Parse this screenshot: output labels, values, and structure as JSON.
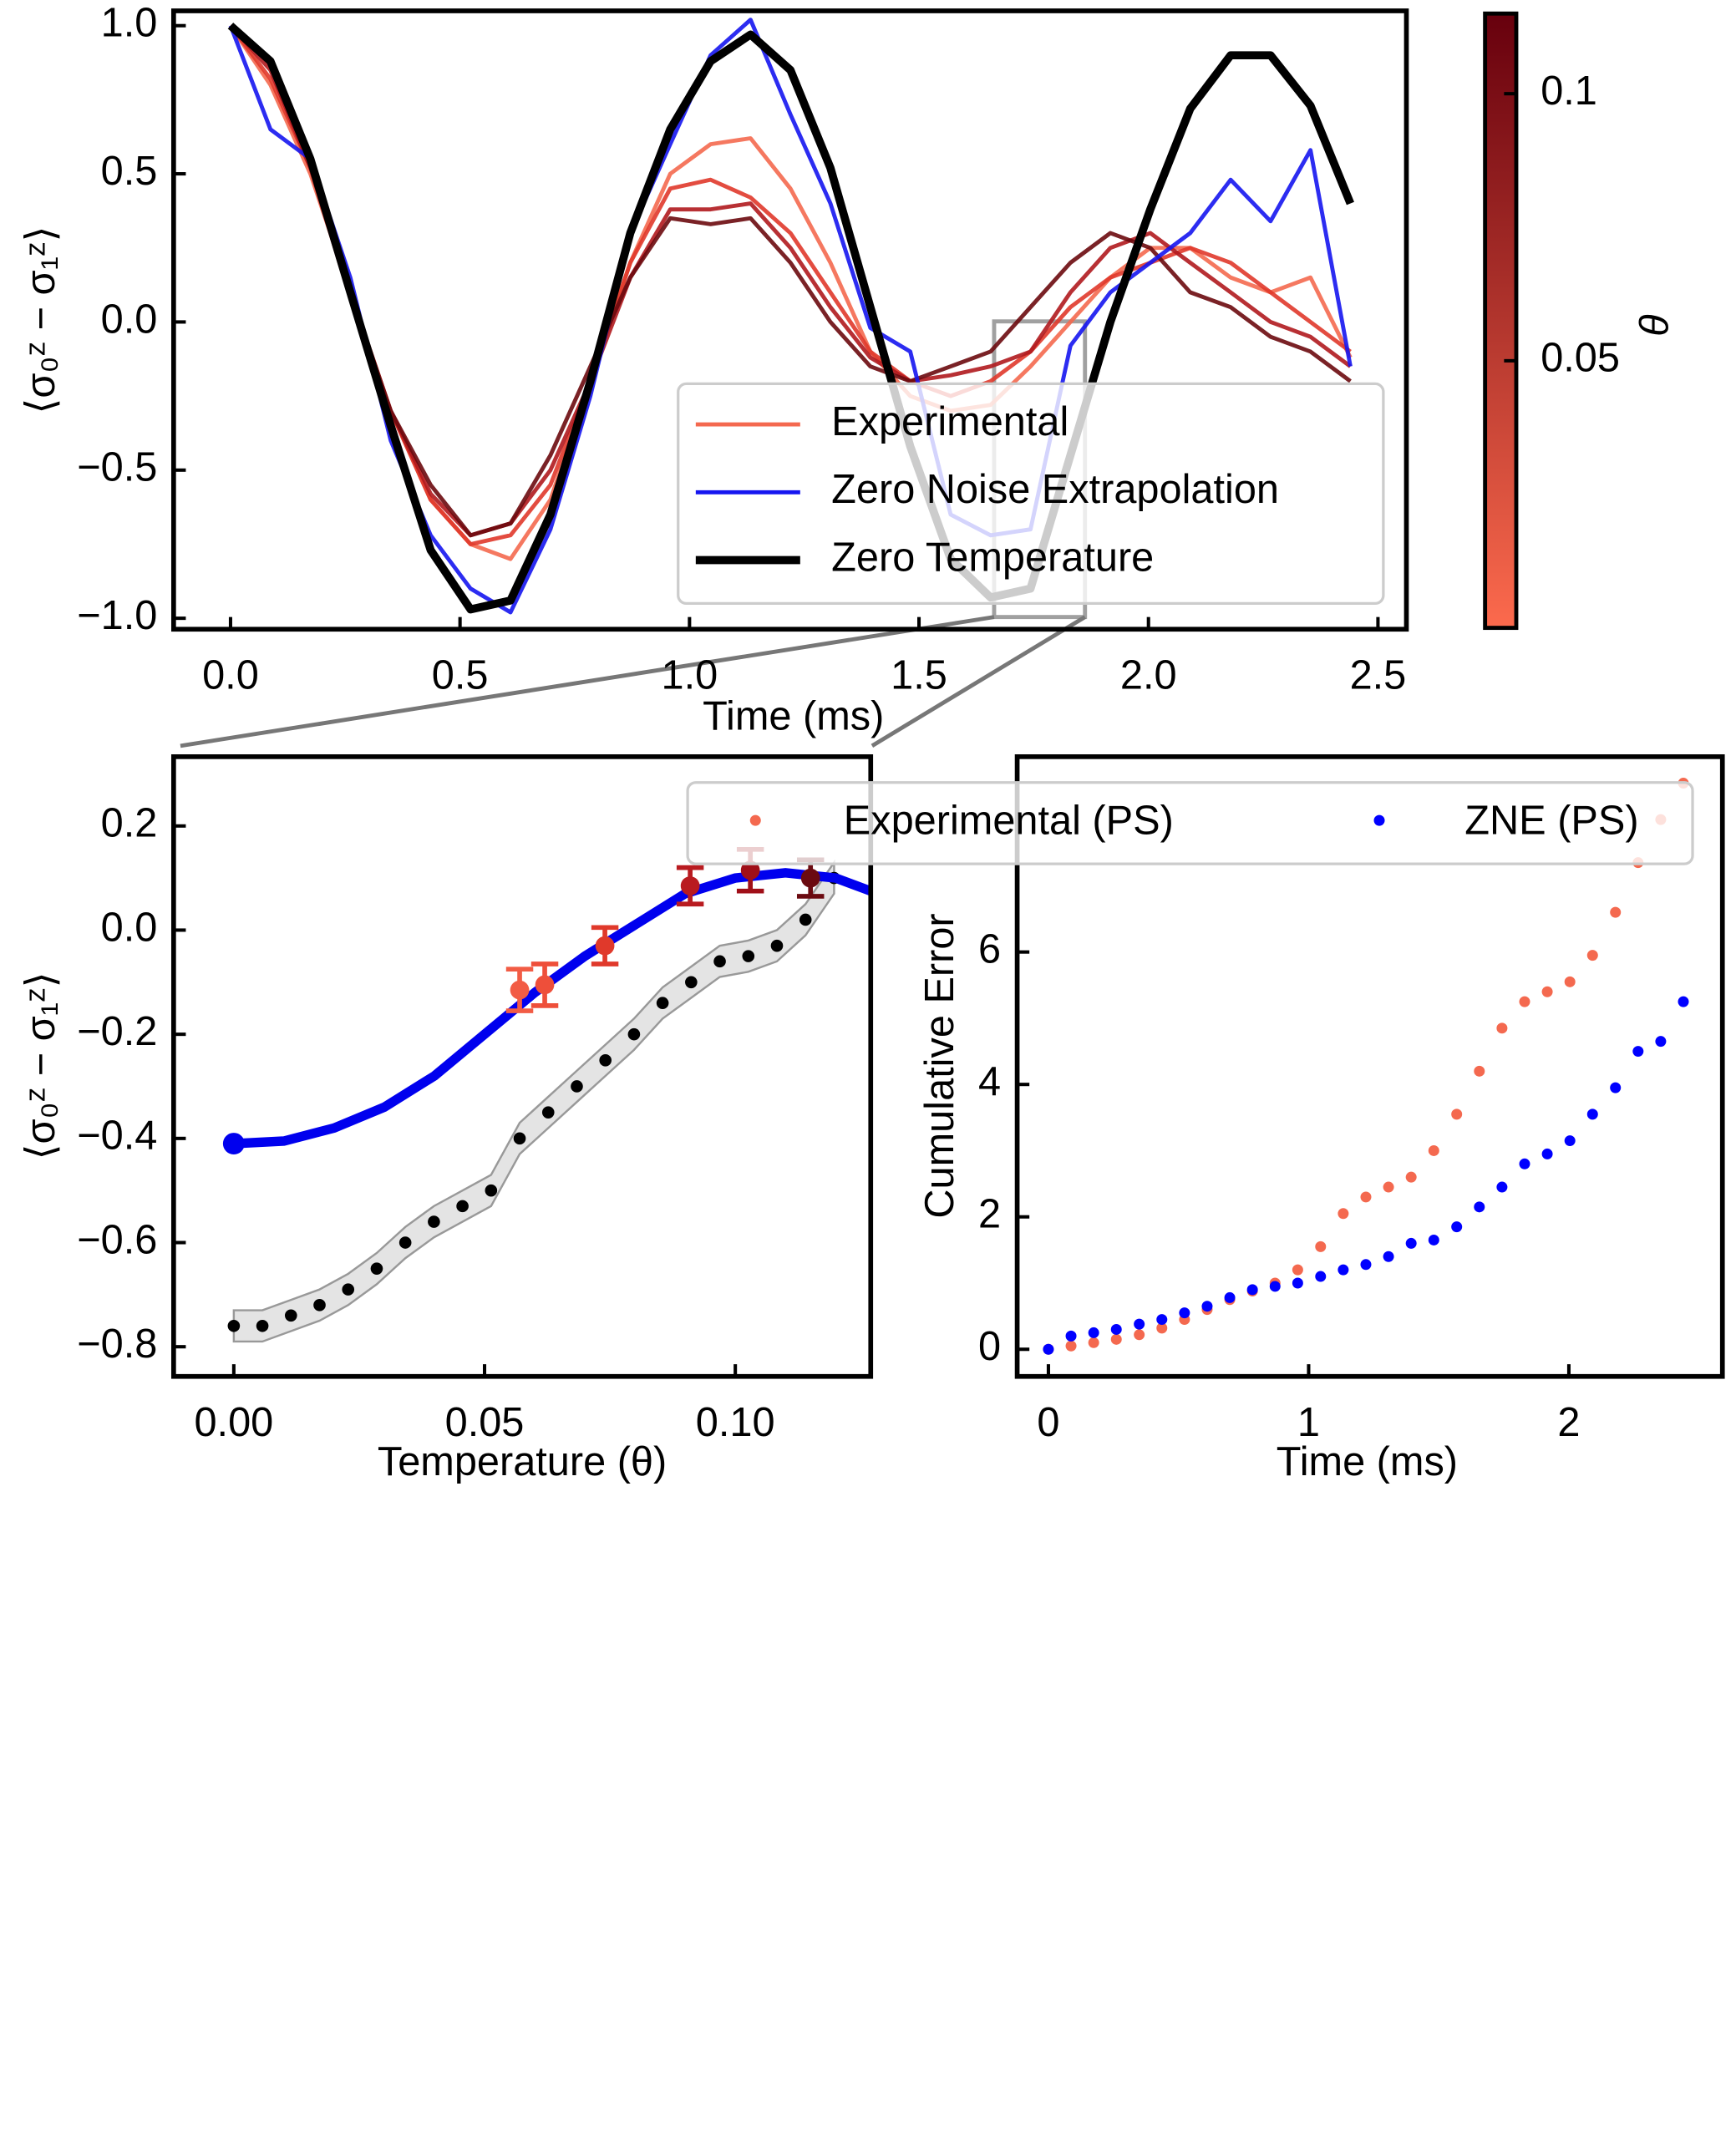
{
  "chart_data": [
    {
      "type": "line",
      "xlabel": "Time (ms)",
      "ylabel": "⟨σ₀ᶻ − σ₁ᶻ⟩",
      "x": [
        0,
        0.087,
        0.174,
        0.261,
        0.349,
        0.436,
        0.523,
        0.61,
        0.697,
        0.784,
        0.871,
        0.958,
        1.046,
        1.133,
        1.22,
        1.307,
        1.394,
        1.481,
        1.569,
        1.656,
        1.743,
        1.83,
        1.917,
        2.004,
        2.091,
        2.179,
        2.266,
        2.353,
        2.44
      ],
      "xlim": [
        -0.124,
        2.562
      ],
      "xticks": [
        {
          "value": 0,
          "label": "0.0"
        },
        0.5,
        {
          "value": 1,
          "label": "1.0"
        },
        1.5,
        {
          "value": 2,
          "label": "2.0"
        },
        2.5
      ],
      "ylim": [
        -1.037,
        1.05
      ],
      "yticks": [
        {
          "value": 1,
          "label": "1.0"
        },
        0.5,
        {
          "value": 0,
          "label": "0.0"
        },
        {
          "value": -0.5,
          "label": "−0.5"
        },
        {
          "value": -1,
          "label": "−1.0"
        }
      ],
      "series": [
        {
          "name": "Experimental",
          "color": "#f4694f",
          "theta": 0.01,
          "values": [
            1.0,
            0.8,
            0.5,
            0.1,
            -0.3,
            -0.6,
            -0.75,
            -0.8,
            -0.6,
            -0.2,
            0.2,
            0.5,
            0.6,
            0.62,
            0.45,
            0.2,
            -0.1,
            -0.25,
            -0.3,
            -0.28,
            -0.15,
            0.0,
            0.15,
            0.25,
            0.25,
            0.15,
            0.1,
            0.15,
            -0.12
          ]
        },
        {
          "color": "#e0392b",
          "theta": 0.06,
          "values": [
            1.0,
            0.82,
            0.52,
            0.1,
            -0.3,
            -0.6,
            -0.75,
            -0.72,
            -0.55,
            -0.2,
            0.2,
            0.45,
            0.48,
            0.42,
            0.3,
            0.1,
            -0.1,
            -0.2,
            -0.25,
            -0.2,
            -0.1,
            0.05,
            0.15,
            0.2,
            0.25,
            0.2,
            0.1,
            0.0,
            -0.1
          ]
        },
        {
          "color": "#b01a1e",
          "theta": 0.09,
          "values": [
            1.0,
            0.85,
            0.52,
            0.08,
            -0.3,
            -0.58,
            -0.72,
            -0.68,
            -0.5,
            -0.2,
            0.15,
            0.38,
            0.38,
            0.4,
            0.25,
            0.05,
            -0.12,
            -0.2,
            -0.18,
            -0.15,
            -0.1,
            0.1,
            0.25,
            0.3,
            0.2,
            0.1,
            0.0,
            -0.05,
            -0.15
          ]
        },
        {
          "color": "#6b0a0e",
          "theta": 0.115,
          "values": [
            1.0,
            0.88,
            0.55,
            0.1,
            -0.3,
            -0.55,
            -0.72,
            -0.68,
            -0.45,
            -0.15,
            0.15,
            0.35,
            0.33,
            0.35,
            0.2,
            0.0,
            -0.15,
            -0.2,
            -0.15,
            -0.1,
            0.05,
            0.2,
            0.3,
            0.25,
            0.1,
            0.05,
            -0.05,
            -0.1,
            -0.2
          ]
        },
        {
          "name": "Zero Noise Extrapolation",
          "color": "#1515f0",
          "values": [
            1.0,
            0.65,
            0.55,
            0.15,
            -0.4,
            -0.72,
            -0.9,
            -0.98,
            -0.7,
            -0.25,
            0.3,
            0.6,
            0.9,
            1.02,
            0.7,
            0.4,
            -0.02,
            -0.1,
            -0.65,
            -0.72,
            -0.7,
            -0.08,
            0.1,
            0.2,
            0.3,
            0.48,
            0.34,
            0.58,
            -0.15
          ]
        },
        {
          "name": "Zero Temperature",
          "color": "#000000",
          "width": 6,
          "values": [
            1.0,
            0.88,
            0.55,
            0.1,
            -0.35,
            -0.77,
            -0.97,
            -0.94,
            -0.65,
            -0.2,
            0.3,
            0.65,
            0.88,
            0.97,
            0.85,
            0.52,
            0.05,
            -0.42,
            -0.8,
            -0.93,
            -0.9,
            -0.45,
            0.0,
            0.38,
            0.72,
            0.9,
            0.9,
            0.73,
            0.4
          ]
        }
      ],
      "colorbar": {
        "label": "θ",
        "clim": [
          0,
          0.115
        ],
        "colors": [
          "#fc6a4d",
          "#67000d"
        ],
        "ticks": [
          0.05,
          0.1
        ]
      }
    },
    {
      "type": "errorbar",
      "xlabel": "Temperature (θ)",
      "ylabel": "⟨σ₀ᶻ − σ₁ᶻ⟩",
      "xlim": [
        -0.012,
        0.127
      ],
      "xticks": [
        {
          "value": 0,
          "label": "0.00"
        },
        0.05,
        {
          "value": 0.1,
          "label": "0.10"
        }
      ],
      "ylim": [
        -0.857,
        0.333
      ],
      "yticks": [
        0.2,
        {
          "value": 0,
          "label": "0.0"
        },
        {
          "value": -0.2,
          "label": "−0.2"
        },
        {
          "value": -0.4,
          "label": "−0.4"
        },
        {
          "value": -0.6,
          "label": "−0.6"
        },
        {
          "value": -0.8,
          "label": "−0.8"
        }
      ],
      "fit": {
        "color": "#0000ee",
        "x": [
          0,
          0.01,
          0.02,
          0.03,
          0.04,
          0.05,
          0.06,
          0.07,
          0.08,
          0.09,
          0.1,
          0.11,
          0.12,
          0.127
        ],
        "values": [
          -0.41,
          -0.405,
          -0.38,
          -0.34,
          -0.28,
          -0.2,
          -0.12,
          -0.05,
          0.01,
          0.07,
          0.1,
          0.11,
          0.1,
          0.075
        ]
      },
      "zne_point": {
        "x": 0,
        "value": -0.41
      },
      "experimental": {
        "x": [
          0.057,
          0.062,
          0.074,
          0.091,
          0.103,
          0.115
        ],
        "values": [
          -0.115,
          -0.105,
          -0.03,
          0.085,
          0.115,
          0.1
        ],
        "errors": [
          0.04,
          0.04,
          0.035,
          0.035,
          0.04,
          0.035
        ],
        "colors": [
          "#f25c45",
          "#ee4f3a",
          "#e0392b",
          "#b91b20",
          "#a00f18",
          "#6b0a10"
        ]
      },
      "zero_temperature": {
        "color": "#000000",
        "spread": 0.03,
        "x": [
          0,
          0.0057,
          0.0114,
          0.0171,
          0.0228,
          0.0285,
          0.0342,
          0.0399,
          0.0456,
          0.0513,
          0.057,
          0.0627,
          0.0684,
          0.0741,
          0.0798,
          0.0855,
          0.0912,
          0.0969,
          0.1026,
          0.1083,
          0.114,
          0.1197
        ],
        "values": [
          -0.76,
          -0.76,
          -0.74,
          -0.72,
          -0.69,
          -0.65,
          -0.6,
          -0.56,
          -0.53,
          -0.5,
          -0.4,
          -0.35,
          -0.3,
          -0.25,
          -0.2,
          -0.14,
          -0.1,
          -0.06,
          -0.05,
          -0.03,
          0.02,
          0.1
        ]
      }
    },
    {
      "type": "scatter",
      "xlabel": "Time (ms)",
      "ylabel": "Cumulative Error",
      "x": [
        0,
        0.087,
        0.174,
        0.261,
        0.349,
        0.436,
        0.523,
        0.61,
        0.697,
        0.784,
        0.871,
        0.958,
        1.046,
        1.133,
        1.22,
        1.307,
        1.394,
        1.481,
        1.569,
        1.656,
        1.743,
        1.83,
        1.917,
        2.004,
        2.091,
        2.179,
        2.266,
        2.353,
        2.44
      ],
      "xlim": [
        -0.12,
        2.59
      ],
      "xticks": [
        0,
        1,
        2
      ],
      "ylim": [
        -0.41,
        8.95
      ],
      "yticks": [
        0,
        2,
        4,
        6
      ],
      "series": [
        {
          "name": "Experimental (PS)",
          "color": "#f4694f",
          "values": [
            0,
            0.05,
            0.1,
            0.15,
            0.22,
            0.32,
            0.45,
            0.6,
            0.75,
            0.88,
            1.0,
            1.2,
            1.55,
            2.05,
            2.3,
            2.45,
            2.6,
            3.0,
            3.55,
            4.2,
            4.85,
            5.25,
            5.4,
            5.55,
            5.95,
            6.6,
            7.35,
            8.0,
            8.55
          ]
        },
        {
          "name": "ZNE (PS)",
          "color": "#0000ff",
          "values": [
            0,
            0.2,
            0.25,
            0.3,
            0.38,
            0.45,
            0.55,
            0.65,
            0.78,
            0.9,
            0.95,
            1.0,
            1.1,
            1.2,
            1.28,
            1.4,
            1.6,
            1.65,
            1.85,
            2.15,
            2.45,
            2.8,
            2.95,
            3.15,
            3.55,
            3.95,
            4.5,
            4.65,
            5.25
          ]
        }
      ],
      "legend": "upper center"
    }
  ]
}
